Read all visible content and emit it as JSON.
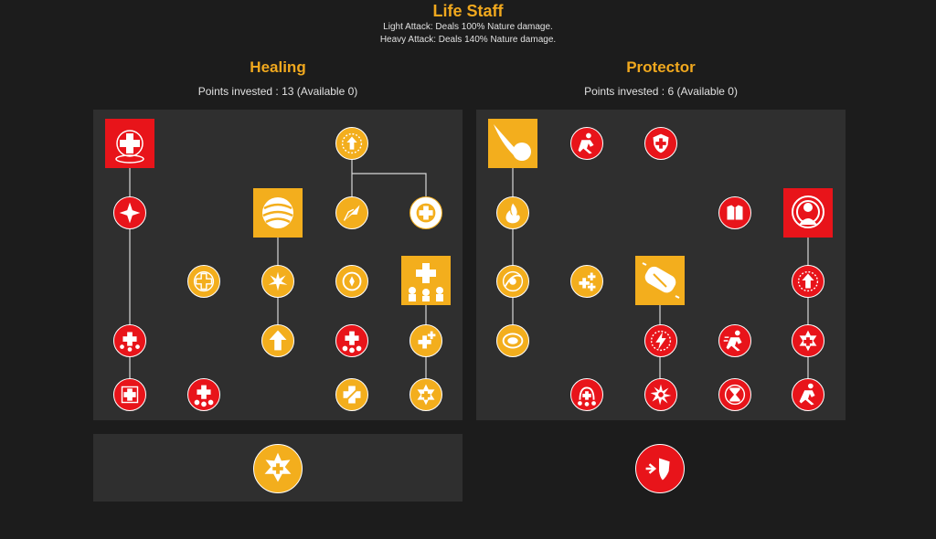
{
  "header": {
    "title": "Life Staff",
    "light_attack": "Light Attack: Deals 100% Nature damage.",
    "heavy_attack": "Heavy Attack: Deals 140% Nature damage."
  },
  "healing": {
    "title": "Healing",
    "points": "Points invested : 13 (Available 0)"
  },
  "protector": {
    "title": "Protector",
    "points": "Points invested : 6 (Available 0)"
  },
  "colors": {
    "background": "#1c1c1c",
    "panel": "#2f2f2f",
    "accent_gold": "#f0a81e",
    "node_red": "#e8141a",
    "node_gold": "#f3ae1d"
  }
}
